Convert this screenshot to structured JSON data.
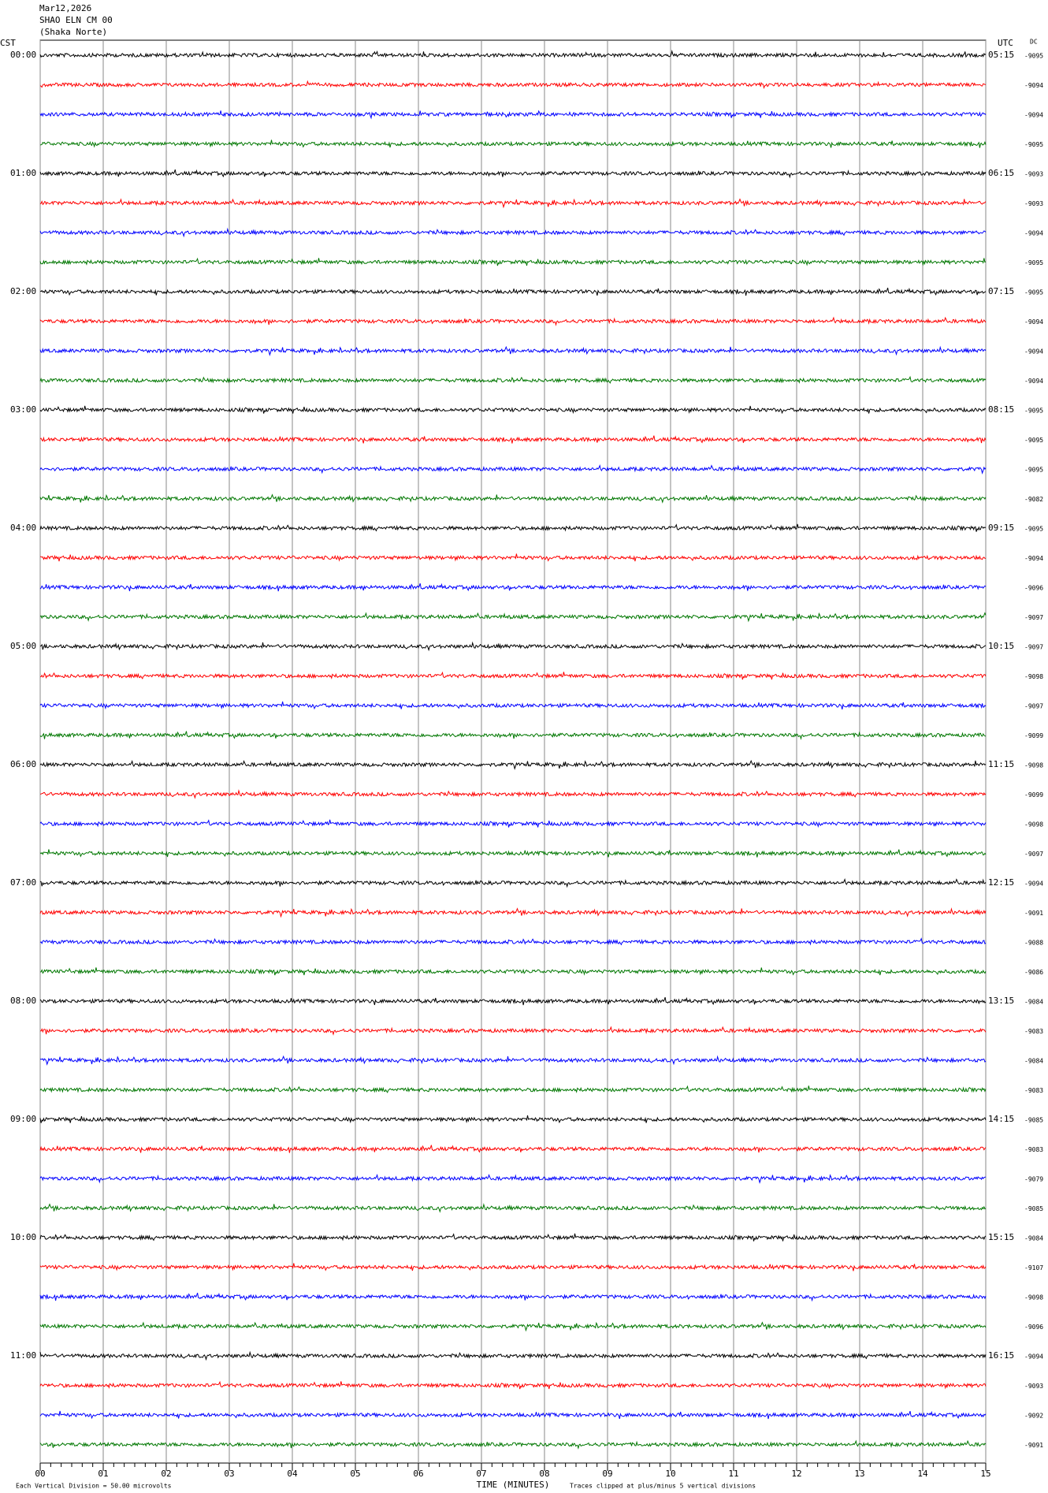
{
  "chart_data": {
    "type": "helicorder",
    "date": "Mar12,2026",
    "station": "SHAO ELN CM 00",
    "site": "(Shaka Norte)",
    "left_zone": "CST",
    "right_zone": "UTC",
    "dc_label": "DC",
    "left_times": [
      "00:00",
      "01:00",
      "02:00",
      "03:00",
      "04:00",
      "05:00",
      "06:00",
      "07:00",
      "08:00",
      "09:00",
      "10:00",
      "11:00"
    ],
    "right_times": [
      "05:15",
      "06:15",
      "07:15",
      "08:15",
      "09:15",
      "10:15",
      "11:15",
      "12:15",
      "13:15",
      "14:15",
      "15:15",
      "16:15"
    ],
    "trace_colors": [
      "#000000",
      "#ff0000",
      "#0000ff",
      "#007700"
    ],
    "dc_offsets": [
      -9095,
      -9094,
      -9094,
      -9095,
      -9093,
      -9093,
      -9094,
      -9095,
      -9095,
      -9094,
      -9094,
      -9094,
      -9095,
      -9095,
      -9095,
      -9082,
      -9095,
      -9094,
      -9096,
      -9097,
      -9097,
      -9098,
      -9097,
      -9099,
      -9098,
      -9099,
      -9098,
      -9097,
      -9094,
      -9091,
      -9088,
      -9086,
      -9084,
      -9083,
      -9084,
      -9083,
      -9085,
      -9083,
      -9079,
      -9085,
      -9084,
      -9107,
      -9098,
      -9096,
      -9094,
      -9093,
      -9092,
      -9091
    ],
    "xlim": [
      0,
      15
    ],
    "xticks": [
      {
        "value": 0,
        "label": "00"
      },
      {
        "value": 1,
        "label": "01"
      },
      {
        "value": 2,
        "label": "02"
      },
      {
        "value": 3,
        "label": "03"
      },
      {
        "value": 4,
        "label": "04"
      },
      {
        "value": 5,
        "label": "05"
      },
      {
        "value": 6,
        "label": "06"
      },
      {
        "value": 7,
        "label": "07"
      },
      {
        "value": 8,
        "label": "08"
      },
      {
        "value": 9,
        "label": "09"
      },
      {
        "value": 10,
        "label": "10"
      },
      {
        "value": 11,
        "label": "11"
      },
      {
        "value": 12,
        "label": "12"
      },
      {
        "value": 13,
        "label": "13"
      },
      {
        "value": 14,
        "label": "14"
      },
      {
        "value": 15,
        "label": "15"
      }
    ],
    "xlabel": "TIME (MINUTES)",
    "scale_note": "Each Vertical Division = 50.00 microvolts",
    "clip_note": "Traces clipped at plus/minus 5 vertical divisions",
    "grid": true
  }
}
